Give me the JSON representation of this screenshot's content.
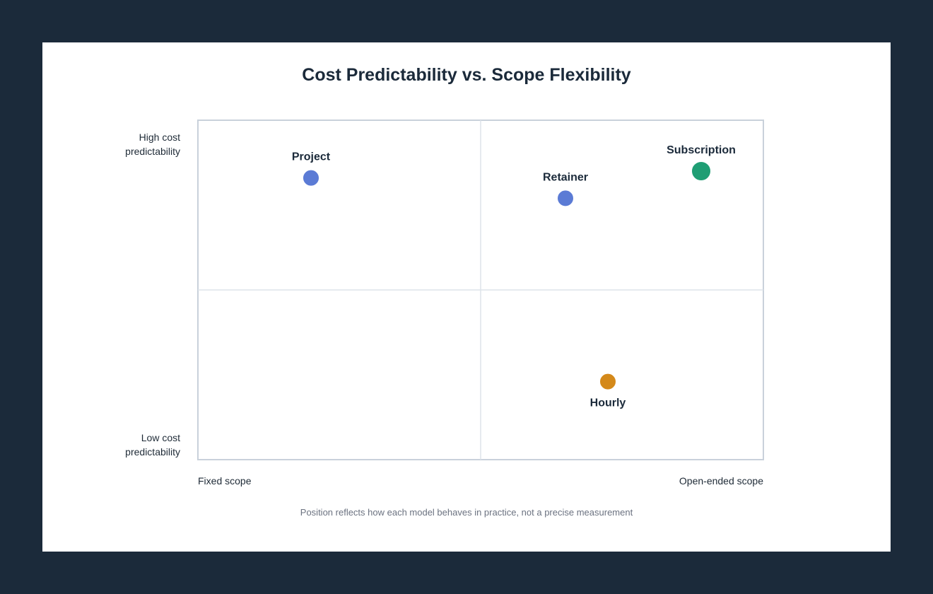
{
  "chart_data": {
    "type": "scatter",
    "title": "Cost Predictability vs. Scope Flexibility",
    "x_tick_labels": [
      "Fixed scope",
      "Open-ended scope"
    ],
    "y_tick_labels": [
      "High cost predictability",
      "Low cost predictability"
    ],
    "xlim": [
      0,
      10
    ],
    "ylim": [
      0,
      10
    ],
    "grid": "quadrants",
    "points": [
      {
        "name": "Project",
        "x": 2.0,
        "y": 8.3,
        "color": "#5b7bd5",
        "label_pos": "above"
      },
      {
        "name": "Retainer",
        "x": 6.5,
        "y": 7.7,
        "color": "#5b7bd5",
        "label_pos": "above"
      },
      {
        "name": "Subscription",
        "x": 8.9,
        "y": 8.5,
        "color": "#1f9e74",
        "label_pos": "above"
      },
      {
        "name": "Hourly",
        "x": 7.25,
        "y": 2.3,
        "color": "#d4891a",
        "label_pos": "below"
      }
    ],
    "footnote": "Position reflects how each model behaves in practice, not a precise measurement"
  }
}
